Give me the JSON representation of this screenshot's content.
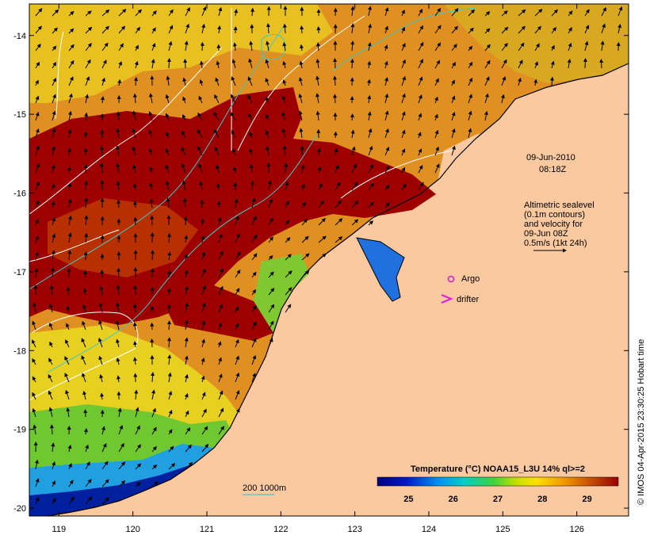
{
  "map": {
    "lon_ticks": [
      "119",
      "120",
      "121",
      "122",
      "123",
      "124",
      "125",
      "126"
    ],
    "lat_ticks": [
      "-14",
      "-15",
      "-16",
      "-17",
      "-18",
      "-19",
      "-20"
    ],
    "lon_range": [
      118.6,
      126.7
    ],
    "lat_range": [
      -20.1,
      -13.6
    ]
  },
  "annotations": {
    "date": "09-Jun-2010",
    "time": "08:18Z",
    "sealevel_line1": "Altimetric sealevel",
    "sealevel_line2": "(0.1m contours)",
    "sealevel_line3": "and velocity for",
    "sealevel_line4": "09-Jun 08Z",
    "scale_label": "0.5m/s (1kt 24h)",
    "argo_label": "Argo",
    "drifter_label": "drifter",
    "bathymetry_label": "200  1000m",
    "credit": "© IMOS 04-Apr-2015 23:30:25 Hobart time"
  },
  "colorbar": {
    "title": "Temperature (°C) NOAA15_L3U 14% ql>=2",
    "ticks": [
      "25",
      "26",
      "27",
      "28",
      "29"
    ],
    "range": [
      24.3,
      29.7
    ]
  },
  "colors": {
    "land": "#fac9a0",
    "hot": "#9e0000",
    "argo": "#d020d0",
    "drifter": "#e020e0",
    "bathy": "#40c8c8"
  }
}
